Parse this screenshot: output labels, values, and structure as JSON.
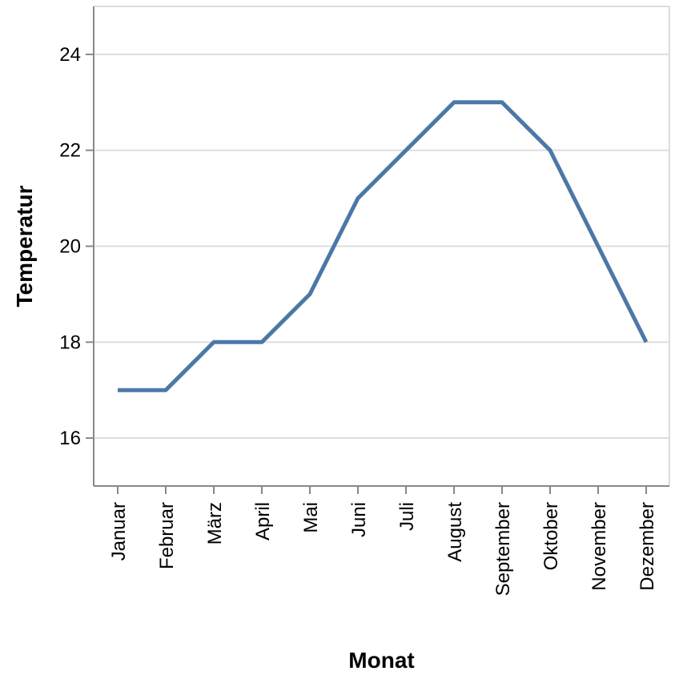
{
  "chart_data": {
    "type": "line",
    "title": "",
    "xlabel": "Monat",
    "ylabel": "Temperatur",
    "categories": [
      "Januar",
      "Februar",
      "März",
      "April",
      "Mai",
      "Juni",
      "Juli",
      "August",
      "September",
      "Oktober",
      "November",
      "Dezember"
    ],
    "series": [
      {
        "values": [
          17,
          17,
          18,
          18,
          19,
          21,
          22,
          23,
          23,
          22,
          20,
          18
        ]
      }
    ],
    "ylim": [
      15,
      25
    ],
    "yticks": [
      16,
      18,
      20,
      22,
      24
    ],
    "grid": "horizontal",
    "colors": {
      "line": "#4c78a8",
      "grid": "#dddddd",
      "axis": "#888888"
    }
  }
}
